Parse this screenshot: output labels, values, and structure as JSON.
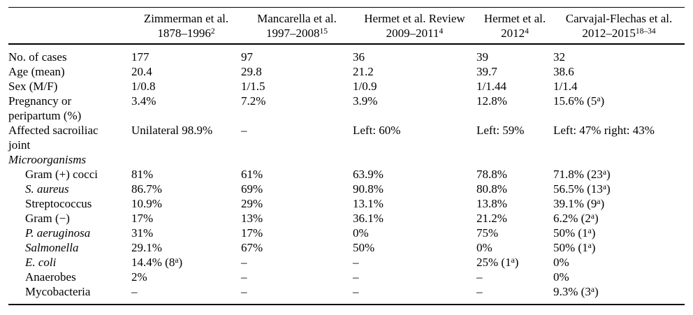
{
  "table": {
    "columns": [
      {
        "name": "",
        "years": ""
      },
      {
        "name": "Zimmerman et al.",
        "years": "1878–1996^{2}"
      },
      {
        "name": "Mancarella et al.",
        "years": "1997–2008^{15}"
      },
      {
        "name": "Hermet et al. Review",
        "years": "2009–2011^{4}"
      },
      {
        "name": "Hermet et al.",
        "years": "2012^{4}"
      },
      {
        "name": "Carvajal-Flechas et al.",
        "years": "2012–2015^{18–34}"
      }
    ],
    "rows": [
      {
        "label": "No. of cases",
        "values": [
          "177",
          "97",
          "36",
          "39",
          "32"
        ]
      },
      {
        "label": "Age (mean)",
        "values": [
          "20.4",
          "29.8",
          "21.2",
          "39.7",
          "38.6"
        ]
      },
      {
        "label": "Sex (M/F)",
        "values": [
          "1/0.8",
          "1/1.5",
          "1/0.9",
          "1/1.44",
          "1/1.4"
        ]
      },
      {
        "label": "Pregnancy or peripartum (%)",
        "values": [
          "3.4%",
          "7.2%",
          "3.9%",
          "12.8%",
          "15.6% (5^{a})"
        ]
      },
      {
        "label": "Affected sacroiliac joint",
        "values": [
          "Unilateral 98.9%",
          "–",
          "Left: 60%",
          "Left: 59%",
          "Left: 47% right: 43%"
        ]
      },
      {
        "label": "Microorganisms",
        "values": [
          "",
          "",
          "",
          "",
          ""
        ]
      },
      {
        "label": "Gram (+) cocci",
        "values": [
          "81%",
          "61%",
          "63.9%",
          "78.8%",
          "71.8% (23^{a})"
        ]
      },
      {
        "label": "S. aureus",
        "values": [
          "86.7%",
          "69%",
          "90.8%",
          "80.8%",
          "56.5% (13^{a})"
        ]
      },
      {
        "label": "Streptococcus",
        "values": [
          "10.9%",
          "29%",
          "13.1%",
          "13.8%",
          "39.1% (9^{a})"
        ]
      },
      {
        "label": "Gram (−)",
        "values": [
          "17%",
          "13%",
          "36.1%",
          "21.2%",
          "6.2% (2^{a})"
        ]
      },
      {
        "label": "P. aeruginosa",
        "values": [
          "31%",
          "17%",
          "0%",
          "75%",
          "50% (1^{a})"
        ]
      },
      {
        "label": "Salmonella",
        "values": [
          "29.1%",
          "67%",
          "50%",
          "0%",
          "50% (1^{a})"
        ]
      },
      {
        "label": "E. coli",
        "values": [
          "14.4% (8^{a})",
          "–",
          "–",
          "25% (1^{a})",
          "0%"
        ]
      },
      {
        "label": "Anaerobes",
        "values": [
          "2%",
          "–",
          "–",
          "–",
          "0%"
        ]
      },
      {
        "label": "Mycobacteria",
        "values": [
          "–",
          "–",
          "–",
          "–",
          "9.3% (3^{a})"
        ]
      }
    ]
  }
}
